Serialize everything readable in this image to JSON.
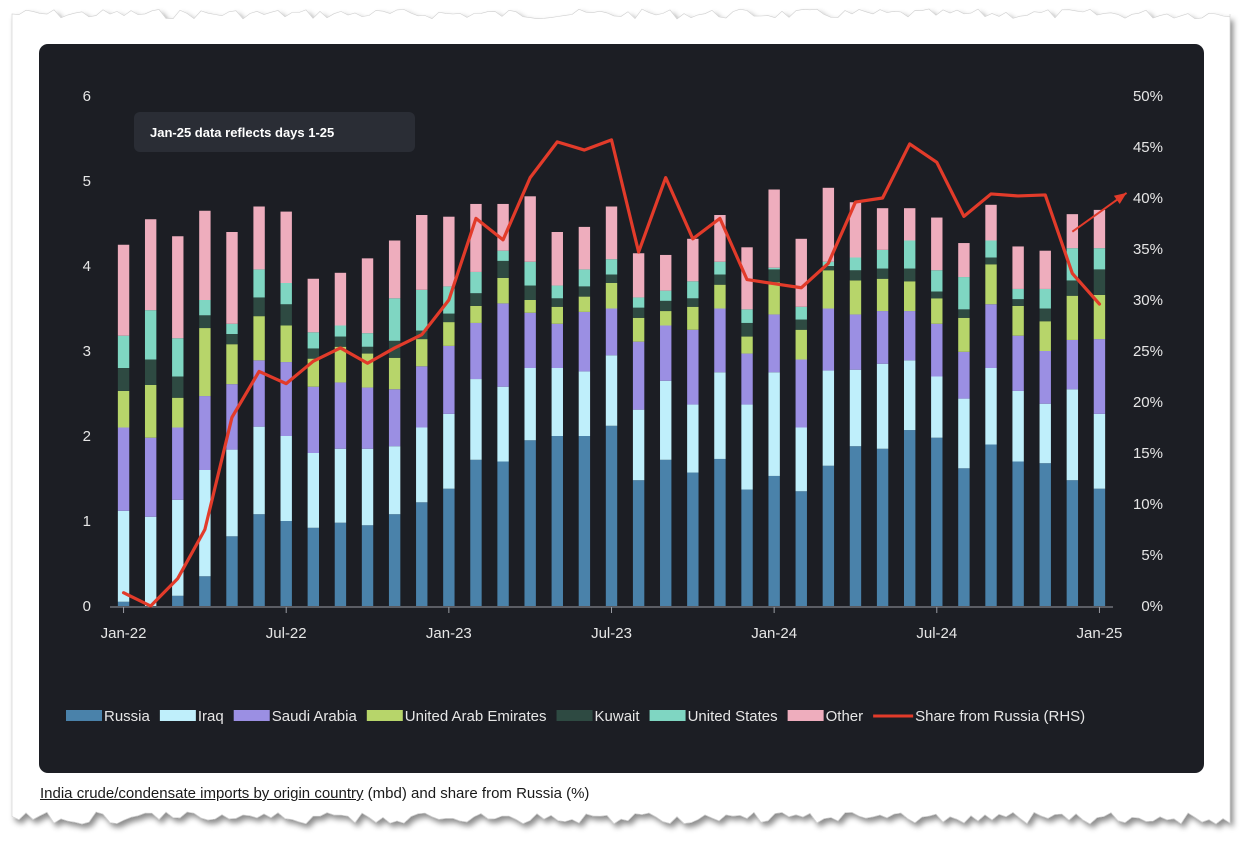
{
  "caption": {
    "link_text": "India crude/condensate imports by origin country",
    "rest_text": " (mbd) and share from Russia (%)"
  },
  "chart_data": {
    "type": "bar",
    "stacked": true,
    "annotation": "Jan-25 data reflects days 1-25",
    "x_tick_labels": [
      "Jan-22",
      "Jul-22",
      "Jan-23",
      "Jul-23",
      "Jan-24",
      "Jul-24",
      "Jan-25"
    ],
    "x_tick_indices": [
      0,
      6,
      12,
      18,
      24,
      30,
      36
    ],
    "categories": [
      "Jan-22",
      "Feb-22",
      "Mar-22",
      "Apr-22",
      "May-22",
      "Jun-22",
      "Jul-22",
      "Aug-22",
      "Sep-22",
      "Oct-22",
      "Nov-22",
      "Dec-22",
      "Jan-23",
      "Feb-23",
      "Mar-23",
      "Apr-23",
      "May-23",
      "Jun-23",
      "Jul-23",
      "Aug-23",
      "Sep-23",
      "Oct-23",
      "Nov-23",
      "Dec-23",
      "Jan-24",
      "Feb-24",
      "Mar-24",
      "Apr-24",
      "May-24",
      "Jun-24",
      "Jul-24",
      "Aug-24",
      "Sep-24",
      "Oct-24",
      "Nov-24",
      "Dec-24",
      "Jan-25"
    ],
    "y_left": {
      "min": 0,
      "max": 6,
      "ticks": [
        0,
        1,
        2,
        3,
        4,
        5,
        6
      ]
    },
    "y_right": {
      "min": 0,
      "max": 50,
      "ticks": [
        0,
        5,
        10,
        15,
        20,
        25,
        30,
        35,
        40,
        45,
        50
      ],
      "tick_labels": [
        "0%",
        "5%",
        "10%",
        "15%",
        "20%",
        "25%",
        "30%",
        "35%",
        "40%",
        "45%",
        "50%"
      ]
    },
    "grid": false,
    "legend_position": "bottom",
    "series": [
      {
        "name": "Russia",
        "color": "#4a82aa",
        "values": [
          0.05,
          0.0,
          0.12,
          0.35,
          0.82,
          1.08,
          1.0,
          0.92,
          0.98,
          0.95,
          1.08,
          1.22,
          1.38,
          1.72,
          1.7,
          1.95,
          2.0,
          2.0,
          2.12,
          1.48,
          1.72,
          1.57,
          1.73,
          1.37,
          1.53,
          1.35,
          1.65,
          1.88,
          1.85,
          2.07,
          1.98,
          1.62,
          1.9,
          1.7,
          1.68,
          1.48,
          1.38
        ]
      },
      {
        "name": "Iraq",
        "color": "#bfeffb",
        "values": [
          1.07,
          1.05,
          1.13,
          1.25,
          1.02,
          1.03,
          1.0,
          0.88,
          0.87,
          0.9,
          0.8,
          0.88,
          0.88,
          0.95,
          0.88,
          0.85,
          0.8,
          0.76,
          0.83,
          0.83,
          0.93,
          0.8,
          1.02,
          1.0,
          1.22,
          0.75,
          1.12,
          0.9,
          1.0,
          0.82,
          0.72,
          0.82,
          0.9,
          0.83,
          0.7,
          1.07,
          0.88
        ]
      },
      {
        "name": "Saudi Arabia",
        "color": "#9b8fe3",
        "values": [
          0.98,
          0.93,
          0.85,
          0.87,
          0.77,
          0.78,
          0.87,
          0.78,
          0.78,
          0.72,
          0.67,
          0.72,
          0.8,
          0.66,
          0.98,
          0.65,
          0.52,
          0.7,
          0.55,
          0.8,
          0.65,
          0.88,
          0.75,
          0.6,
          0.68,
          0.8,
          0.73,
          0.65,
          0.62,
          0.58,
          0.62,
          0.55,
          0.75,
          0.65,
          0.62,
          0.58,
          0.88
        ]
      },
      {
        "name": "United Arab Emirates",
        "color": "#b7d56a",
        "values": [
          0.43,
          0.62,
          0.35,
          0.8,
          0.47,
          0.52,
          0.43,
          0.33,
          0.42,
          0.4,
          0.37,
          0.32,
          0.28,
          0.2,
          0.3,
          0.15,
          0.2,
          0.18,
          0.3,
          0.28,
          0.17,
          0.27,
          0.28,
          0.2,
          0.38,
          0.35,
          0.45,
          0.4,
          0.38,
          0.35,
          0.3,
          0.4,
          0.47,
          0.35,
          0.35,
          0.52,
          0.52
        ]
      },
      {
        "name": "Kuwait",
        "color": "#2e4a42",
        "values": [
          0.27,
          0.3,
          0.25,
          0.15,
          0.12,
          0.22,
          0.25,
          0.12,
          0.12,
          0.08,
          0.2,
          0.1,
          0.1,
          0.15,
          0.2,
          0.17,
          0.1,
          0.12,
          0.1,
          0.12,
          0.12,
          0.1,
          0.12,
          0.16,
          0.15,
          0.12,
          0.05,
          0.12,
          0.12,
          0.15,
          0.08,
          0.1,
          0.08,
          0.08,
          0.15,
          0.18,
          0.3
        ]
      },
      {
        "name": "United States",
        "color": "#7fd6c2",
        "values": [
          0.38,
          0.58,
          0.45,
          0.18,
          0.12,
          0.33,
          0.25,
          0.19,
          0.13,
          0.16,
          0.5,
          0.48,
          0.32,
          0.25,
          0.12,
          0.28,
          0.15,
          0.2,
          0.18,
          0.12,
          0.12,
          0.2,
          0.15,
          0.16,
          0.02,
          0.15,
          0.05,
          0.15,
          0.22,
          0.33,
          0.25,
          0.38,
          0.2,
          0.12,
          0.23,
          0.38,
          0.25
        ]
      },
      {
        "name": "Other",
        "color": "#eeadbd",
        "values": [
          1.07,
          1.07,
          1.2,
          1.05,
          1.08,
          0.74,
          0.84,
          0.63,
          0.62,
          0.88,
          0.68,
          0.88,
          0.82,
          0.8,
          0.55,
          0.77,
          0.63,
          0.5,
          0.62,
          0.52,
          0.42,
          0.5,
          0.55,
          0.73,
          0.92,
          0.8,
          0.87,
          0.65,
          0.49,
          0.38,
          0.62,
          0.4,
          0.42,
          0.5,
          0.45,
          0.4,
          0.45
        ]
      }
    ],
    "line_series": {
      "name": "Share from Russia (RHS)",
      "color": "#e23b2a",
      "axis": "right",
      "values": [
        1.3,
        0.0,
        2.7,
        7.5,
        18.5,
        23.0,
        21.8,
        24.0,
        25.3,
        23.8,
        25.3,
        26.6,
        30.0,
        38.0,
        35.9,
        42.0,
        45.5,
        44.7,
        45.7,
        34.7,
        42.0,
        36.0,
        38.0,
        32.0,
        31.6,
        31.2,
        33.6,
        39.6,
        40.0,
        45.3,
        43.5,
        38.2,
        40.4,
        40.2,
        40.3,
        32.6,
        29.6
      ]
    },
    "trend_arrow": {
      "from": [
        35,
        36.7
      ],
      "to": [
        37,
        40.5
      ],
      "color": "#e23b2a"
    }
  }
}
